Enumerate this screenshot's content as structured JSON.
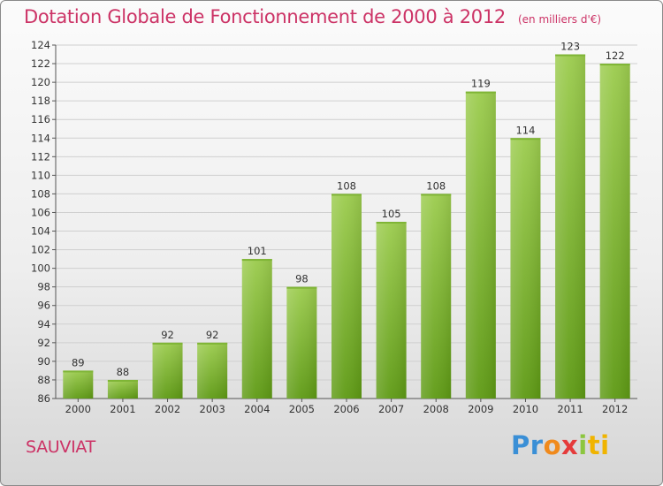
{
  "header": {
    "title": "Dotation Globale de Fonctionnement de 2000 à 2012",
    "unit": "(en milliers d'€)"
  },
  "footer": {
    "commune": "SAUVIAT",
    "logo_letters": [
      "P",
      "r",
      "o",
      "x",
      "i",
      "t",
      "i"
    ]
  },
  "colors": {
    "title": "#cc3366",
    "bar_top": "#9ccc4e",
    "bar_bottom": "#5e9a14",
    "grid": "#cfcfcf"
  },
  "chart_data": {
    "type": "bar",
    "title": "Dotation Globale de Fonctionnement de 2000 à 2012",
    "subtitle": "(en milliers d'€)",
    "xlabel": "",
    "ylabel": "",
    "categories": [
      "2000",
      "2001",
      "2002",
      "2003",
      "2004",
      "2005",
      "2006",
      "2007",
      "2008",
      "2009",
      "2010",
      "2011",
      "2012"
    ],
    "values": [
      89,
      88,
      92,
      92,
      101,
      98,
      108,
      105,
      108,
      119,
      114,
      123,
      122
    ],
    "ylim": [
      86,
      124
    ],
    "yticks": [
      86,
      88,
      90,
      92,
      94,
      96,
      98,
      100,
      102,
      104,
      106,
      108,
      110,
      112,
      114,
      116,
      118,
      120,
      122,
      124
    ],
    "grid": true,
    "data_labels": true,
    "legend": "none"
  }
}
